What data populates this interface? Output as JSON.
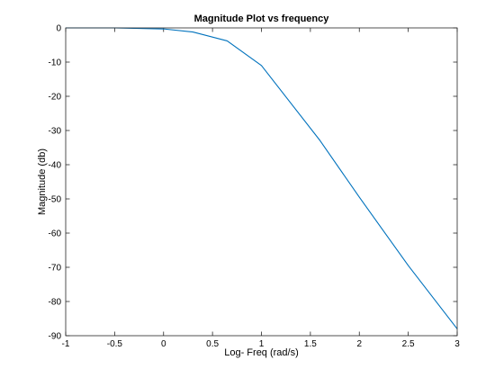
{
  "chart_data": {
    "type": "line",
    "title": "Magnitude Plot vs frequency",
    "xlabel": "Log- Freq (rad/s)",
    "ylabel": "Magnitude (db)",
    "xlim": [
      -1,
      3
    ],
    "ylim": [
      -90,
      0
    ],
    "xticks": [
      "-1",
      "-0.5",
      "0",
      "0.5",
      "1",
      "1.5",
      "2",
      "2.5",
      "3"
    ],
    "yticks": [
      "0",
      "-10",
      "-20",
      "-30",
      "-40",
      "-50",
      "-60",
      "-70",
      "-80",
      "-90"
    ],
    "grid": false,
    "series": [
      {
        "color": "#0072BD",
        "x": [
          -1,
          -0.5,
          0,
          0.3,
          0.65,
          1,
          1.6,
          2,
          2.5,
          3
        ],
        "y": [
          0,
          0,
          -0.3,
          -1.2,
          -3.8,
          -11,
          -33,
          -49.5,
          -69.5,
          -88
        ]
      }
    ]
  }
}
